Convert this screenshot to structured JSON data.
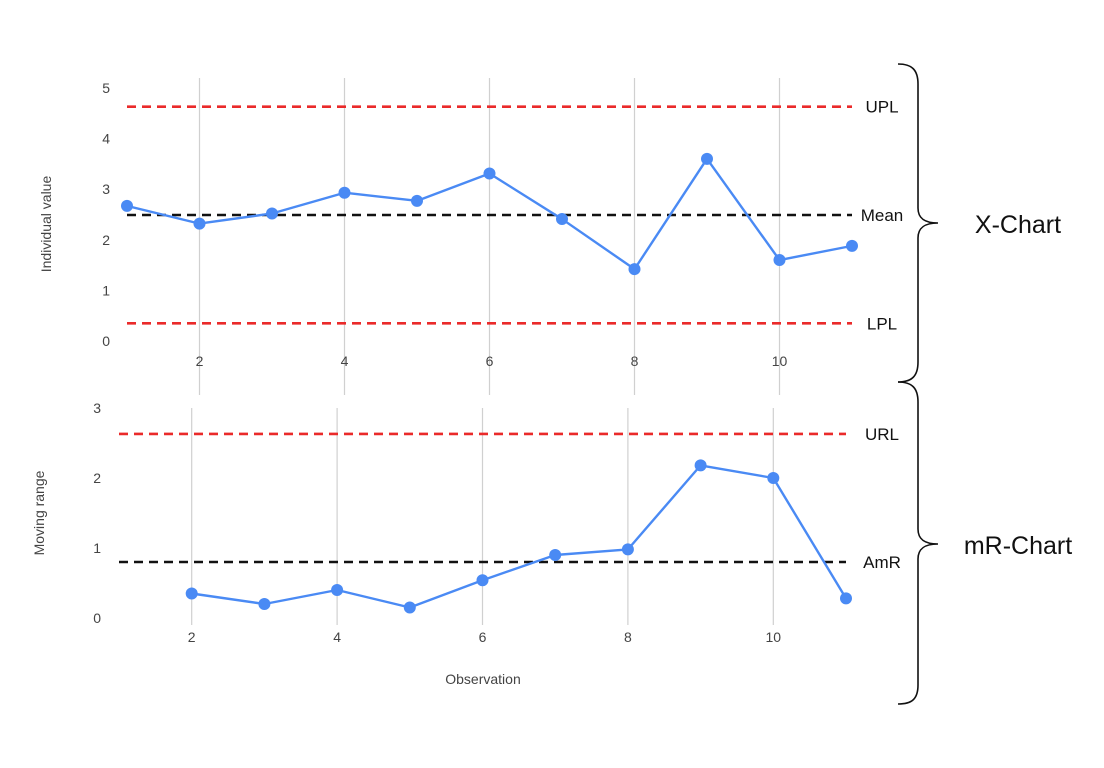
{
  "chart_data": [
    {
      "type": "line",
      "ylabel": "Individual value",
      "xlabel": "",
      "xlim": [
        1,
        11
      ],
      "ylim": [
        0,
        5
      ],
      "x_ticks": [
        2,
        4,
        6,
        8,
        10
      ],
      "y_ticks": [
        0,
        1,
        2,
        3,
        4,
        5
      ],
      "grid": "vertical",
      "series": [
        {
          "x": [
            1,
            2,
            3,
            4,
            5,
            6,
            7,
            8,
            9,
            10,
            11
          ],
          "values": [
            2.67,
            2.32,
            2.52,
            2.93,
            2.77,
            3.31,
            2.41,
            1.42,
            3.6,
            1.6,
            1.88
          ]
        }
      ],
      "reference_lines": [
        {
          "label": "UPL",
          "value": 4.63,
          "color": "#ea2a2a"
        },
        {
          "label": "Mean",
          "value": 2.49,
          "color": "#111111"
        },
        {
          "label": "LPL",
          "value": 0.35,
          "color": "#ea2a2a"
        }
      ],
      "group_label": "X-Chart"
    },
    {
      "type": "line",
      "ylabel": "Moving range",
      "xlabel": "Observation",
      "xlim": [
        1,
        11
      ],
      "ylim": [
        0,
        3
      ],
      "x_ticks": [
        2,
        4,
        6,
        8,
        10
      ],
      "y_ticks": [
        0,
        1,
        2,
        3
      ],
      "grid": "vertical",
      "series": [
        {
          "x": [
            2,
            3,
            4,
            5,
            6,
            7,
            8,
            9,
            10,
            11
          ],
          "values": [
            0.35,
            0.2,
            0.4,
            0.15,
            0.54,
            0.9,
            0.98,
            2.18,
            2.0,
            0.28
          ]
        }
      ],
      "reference_lines": [
        {
          "label": "URL",
          "value": 2.63,
          "color": "#ea2a2a"
        },
        {
          "label": "AmR",
          "value": 0.8,
          "color": "#111111"
        }
      ],
      "group_label": "mR-Chart"
    }
  ],
  "colors": {
    "series": "#4a8af4",
    "grid": "#d0d0d0"
  }
}
